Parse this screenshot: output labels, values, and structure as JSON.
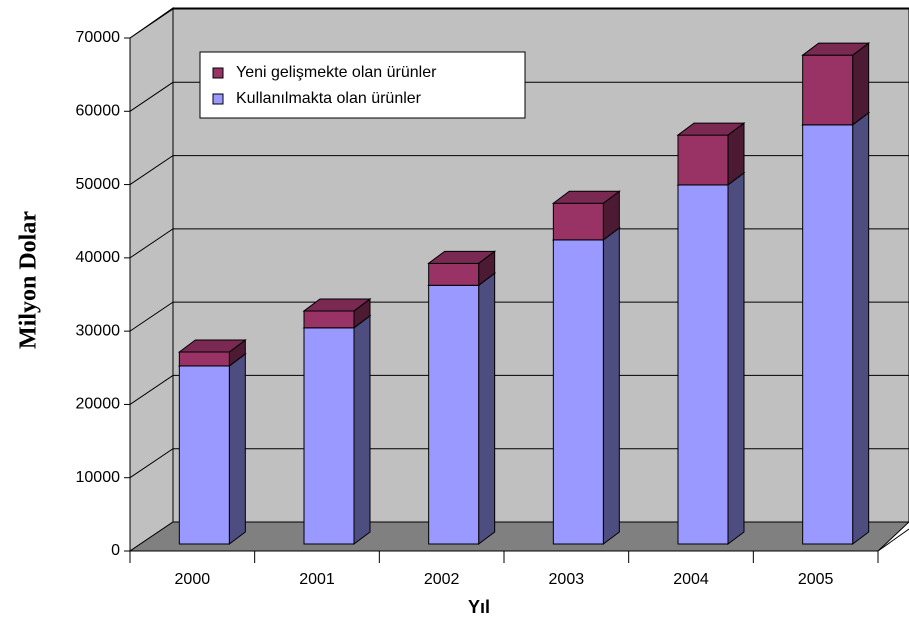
{
  "chart_data": {
    "type": "bar3d_stacked",
    "x_label": "Yıl",
    "y_label": "Milyon Dolar",
    "categories": [
      "2000",
      "2001",
      "2002",
      "2003",
      "2004",
      "2005"
    ],
    "series": [
      {
        "name": "Kullanılmakta olan ürünler",
        "color": "#9999ff",
        "values": [
          24300,
          29500,
          35300,
          41500,
          49000,
          57200
        ]
      },
      {
        "name": "Yeni gelişmekte olan ürünler",
        "color": "#993366",
        "values": [
          1900,
          2300,
          3000,
          5000,
          6800,
          9500
        ]
      }
    ],
    "ylim": [
      0,
      70000
    ],
    "yticks": [
      0,
      10000,
      20000,
      30000,
      40000,
      50000,
      60000,
      70000
    ],
    "grid": true
  }
}
